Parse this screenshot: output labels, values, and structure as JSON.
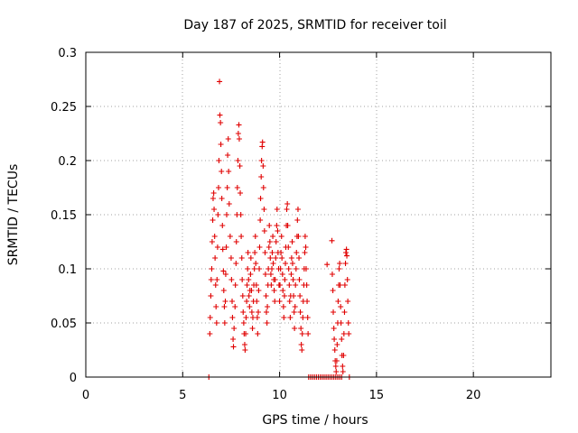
{
  "chart_data": {
    "type": "scatter",
    "title": "Day 187 of 2025, SRMTID for receiver toil",
    "xlabel": "GPS time / hours",
    "ylabel": "SRMTID / TECUs",
    "xlim": [
      0,
      24
    ],
    "ylim": [
      0,
      0.3
    ],
    "xticks": [
      "0",
      "5",
      "10",
      "15",
      "20"
    ],
    "yticks": [
      "0",
      "0.05",
      "0.1",
      "0.15",
      "0.2",
      "0.25",
      "0.3"
    ],
    "grid": true,
    "marker": "plus",
    "series_color": "#e00000",
    "series": [
      {
        "points": [
          [
            6.35,
            0.0
          ],
          [
            6.4,
            0.04
          ],
          [
            6.42,
            0.055
          ],
          [
            6.45,
            0.075
          ],
          [
            6.47,
            0.09
          ],
          [
            6.5,
            0.1
          ],
          [
            6.52,
            0.125
          ],
          [
            6.55,
            0.145
          ],
          [
            6.57,
            0.165
          ],
          [
            6.6,
            0.17
          ],
          [
            6.62,
            0.155
          ],
          [
            6.65,
            0.13
          ],
          [
            6.67,
            0.11
          ],
          [
            6.7,
            0.085
          ],
          [
            6.72,
            0.065
          ],
          [
            6.75,
            0.05
          ],
          [
            6.77,
            0.09
          ],
          [
            6.8,
            0.12
          ],
          [
            6.82,
            0.15
          ],
          [
            6.85,
            0.175
          ],
          [
            6.87,
            0.2
          ],
          [
            6.9,
            0.273
          ],
          [
            6.92,
            0.242
          ],
          [
            6.95,
            0.235
          ],
          [
            6.97,
            0.215
          ],
          [
            7.0,
            0.19
          ],
          [
            7.02,
            0.165
          ],
          [
            7.05,
            0.14
          ],
          [
            7.07,
            0.118
          ],
          [
            7.1,
            0.098
          ],
          [
            7.12,
            0.08
          ],
          [
            7.15,
            0.065
          ],
          [
            7.17,
            0.05
          ],
          [
            7.2,
            0.07
          ],
          [
            7.22,
            0.095
          ],
          [
            7.25,
            0.12
          ],
          [
            7.27,
            0.15
          ],
          [
            7.3,
            0.175
          ],
          [
            7.32,
            0.205
          ],
          [
            7.35,
            0.22
          ],
          [
            7.37,
            0.19
          ],
          [
            7.4,
            0.16
          ],
          [
            7.45,
            0.13
          ],
          [
            7.5,
            0.11
          ],
          [
            7.52,
            0.09
          ],
          [
            7.55,
            0.07
          ],
          [
            7.57,
            0.055
          ],
          [
            7.6,
            0.035
          ],
          [
            7.62,
            0.028
          ],
          [
            7.65,
            0.045
          ],
          [
            7.7,
            0.065
          ],
          [
            7.72,
            0.085
          ],
          [
            7.75,
            0.105
          ],
          [
            7.77,
            0.125
          ],
          [
            7.8,
            0.15
          ],
          [
            7.82,
            0.175
          ],
          [
            7.85,
            0.2
          ],
          [
            7.87,
            0.225
          ],
          [
            7.9,
            0.233
          ],
          [
            7.92,
            0.22
          ],
          [
            7.95,
            0.195
          ],
          [
            7.97,
            0.17
          ],
          [
            8.0,
            0.15
          ],
          [
            8.02,
            0.13
          ],
          [
            8.05,
            0.11
          ],
          [
            8.07,
            0.09
          ],
          [
            8.1,
            0.075
          ],
          [
            8.12,
            0.06
          ],
          [
            8.15,
            0.05
          ],
          [
            8.17,
            0.04
          ],
          [
            8.2,
            0.03
          ],
          [
            8.22,
            0.025
          ],
          [
            8.25,
            0.04
          ],
          [
            8.27,
            0.055
          ],
          [
            8.3,
            0.07
          ],
          [
            8.32,
            0.085
          ],
          [
            8.35,
            0.1
          ],
          [
            8.37,
            0.115
          ],
          [
            8.4,
            0.09
          ],
          [
            8.42,
            0.075
          ],
          [
            8.45,
            0.065
          ],
          [
            8.47,
            0.08
          ],
          [
            8.5,
            0.095
          ],
          [
            8.52,
            0.11
          ],
          [
            8.55,
            0.08
          ],
          [
            8.57,
            0.06
          ],
          [
            8.6,
            0.045
          ],
          [
            8.62,
            0.055
          ],
          [
            8.65,
            0.07
          ],
          [
            8.67,
            0.085
          ],
          [
            8.7,
            0.1
          ],
          [
            8.72,
            0.115
          ],
          [
            8.75,
            0.13
          ],
          [
            8.77,
            0.105
          ],
          [
            8.8,
            0.085
          ],
          [
            8.82,
            0.07
          ],
          [
            8.85,
            0.055
          ],
          [
            8.87,
            0.04
          ],
          [
            8.9,
            0.06
          ],
          [
            8.92,
            0.08
          ],
          [
            8.95,
            0.1
          ],
          [
            8.97,
            0.12
          ],
          [
            9.0,
            0.145
          ],
          [
            9.02,
            0.165
          ],
          [
            9.05,
            0.185
          ],
          [
            9.07,
            0.2
          ],
          [
            9.1,
            0.213
          ],
          [
            9.12,
            0.217
          ],
          [
            9.15,
            0.195
          ],
          [
            9.17,
            0.175
          ],
          [
            9.2,
            0.155
          ],
          [
            9.22,
            0.135
          ],
          [
            9.25,
            0.115
          ],
          [
            9.27,
            0.095
          ],
          [
            9.3,
            0.075
          ],
          [
            9.32,
            0.06
          ],
          [
            9.35,
            0.05
          ],
          [
            9.37,
            0.065
          ],
          [
            9.4,
            0.085
          ],
          [
            9.42,
            0.1
          ],
          [
            9.45,
            0.12
          ],
          [
            9.47,
            0.14
          ],
          [
            9.5,
            0.125
          ],
          [
            9.52,
            0.11
          ],
          [
            9.55,
            0.095
          ],
          [
            9.57,
            0.085
          ],
          [
            9.6,
            0.1
          ],
          [
            9.62,
            0.115
          ],
          [
            9.65,
            0.13
          ],
          [
            9.67,
            0.105
          ],
          [
            9.7,
            0.09
          ],
          [
            9.72,
            0.08
          ],
          [
            9.75,
            0.07
          ],
          [
            9.77,
            0.09
          ],
          [
            9.8,
            0.11
          ],
          [
            9.82,
            0.125
          ],
          [
            9.85,
            0.14
          ],
          [
            9.87,
            0.155
          ],
          [
            9.9,
            0.135
          ],
          [
            9.92,
            0.115
          ],
          [
            9.95,
            0.1
          ],
          [
            9.97,
            0.085
          ],
          [
            10.0,
            0.07
          ],
          [
            10.02,
            0.085
          ],
          [
            10.05,
            0.1
          ],
          [
            10.07,
            0.115
          ],
          [
            10.1,
            0.13
          ],
          [
            10.12,
            0.11
          ],
          [
            10.15,
            0.095
          ],
          [
            10.17,
            0.08
          ],
          [
            10.2,
            0.065
          ],
          [
            10.22,
            0.055
          ],
          [
            10.25,
            0.075
          ],
          [
            10.27,
            0.09
          ],
          [
            10.3,
            0.105
          ],
          [
            10.32,
            0.12
          ],
          [
            10.35,
            0.14
          ],
          [
            10.37,
            0.155
          ],
          [
            10.4,
            0.16
          ],
          [
            10.42,
            0.14
          ],
          [
            10.45,
            0.12
          ],
          [
            10.47,
            0.1
          ],
          [
            10.5,
            0.085
          ],
          [
            10.52,
            0.07
          ],
          [
            10.55,
            0.055
          ],
          [
            10.57,
            0.075
          ],
          [
            10.6,
            0.095
          ],
          [
            10.62,
            0.11
          ],
          [
            10.65,
            0.125
          ],
          [
            10.67,
            0.105
          ],
          [
            10.7,
            0.09
          ],
          [
            10.72,
            0.075
          ],
          [
            10.75,
            0.06
          ],
          [
            10.77,
            0.045
          ],
          [
            10.8,
            0.065
          ],
          [
            10.82,
            0.085
          ],
          [
            10.85,
            0.1
          ],
          [
            10.87,
            0.115
          ],
          [
            10.9,
            0.13
          ],
          [
            10.92,
            0.145
          ],
          [
            10.95,
            0.155
          ],
          [
            10.97,
            0.13
          ],
          [
            11.0,
            0.11
          ],
          [
            11.02,
            0.09
          ],
          [
            11.05,
            0.075
          ],
          [
            11.07,
            0.06
          ],
          [
            11.1,
            0.045
          ],
          [
            11.12,
            0.03
          ],
          [
            11.15,
            0.025
          ],
          [
            11.17,
            0.04
          ],
          [
            11.2,
            0.055
          ],
          [
            11.22,
            0.07
          ],
          [
            11.25,
            0.085
          ],
          [
            11.27,
            0.1
          ],
          [
            11.3,
            0.115
          ],
          [
            11.32,
            0.13
          ],
          [
            11.35,
            0.12
          ],
          [
            11.37,
            0.1
          ],
          [
            11.4,
            0.085
          ],
          [
            11.42,
            0.07
          ],
          [
            11.45,
            0.055
          ],
          [
            11.47,
            0.04
          ],
          [
            11.5,
            0.0
          ],
          [
            11.6,
            0.0
          ],
          [
            11.7,
            0.0
          ],
          [
            11.8,
            0.0
          ],
          [
            11.9,
            0.0
          ],
          [
            12.0,
            0.0
          ],
          [
            12.1,
            0.0
          ],
          [
            12.2,
            0.0
          ],
          [
            12.3,
            0.0
          ],
          [
            12.4,
            0.0
          ],
          [
            12.5,
            0.0
          ],
          [
            12.6,
            0.0
          ],
          [
            12.7,
            0.0
          ],
          [
            12.8,
            0.0
          ],
          [
            12.9,
            0.0
          ],
          [
            13.0,
            0.0
          ],
          [
            13.1,
            0.0
          ],
          [
            13.2,
            0.0
          ],
          [
            13.6,
            0.0
          ],
          [
            12.45,
            0.104
          ],
          [
            12.7,
            0.126
          ],
          [
            12.72,
            0.095
          ],
          [
            12.75,
            0.08
          ],
          [
            12.77,
            0.06
          ],
          [
            12.8,
            0.045
          ],
          [
            12.82,
            0.035
          ],
          [
            12.85,
            0.025
          ],
          [
            12.87,
            0.015
          ],
          [
            12.9,
            0.01
          ],
          [
            12.92,
            0.005
          ],
          [
            12.95,
            0.015
          ],
          [
            12.97,
            0.03
          ],
          [
            13.0,
            0.05
          ],
          [
            13.02,
            0.07
          ],
          [
            13.05,
            0.085
          ],
          [
            13.07,
            0.1
          ],
          [
            13.1,
            0.105
          ],
          [
            13.12,
            0.085
          ],
          [
            13.15,
            0.065
          ],
          [
            13.17,
            0.05
          ],
          [
            13.2,
            0.035
          ],
          [
            13.22,
            0.02
          ],
          [
            13.25,
            0.01
          ],
          [
            13.27,
            0.005
          ],
          [
            13.3,
            0.02
          ],
          [
            13.32,
            0.04
          ],
          [
            13.35,
            0.06
          ],
          [
            13.37,
            0.085
          ],
          [
            13.4,
            0.105
          ],
          [
            13.42,
            0.115
          ],
          [
            13.45,
            0.118
          ],
          [
            13.47,
            0.112
          ],
          [
            13.5,
            0.09
          ],
          [
            13.52,
            0.07
          ],
          [
            13.55,
            0.05
          ],
          [
            13.57,
            0.04
          ]
        ]
      }
    ]
  }
}
